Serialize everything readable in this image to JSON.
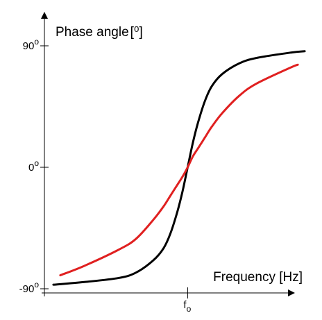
{
  "chart_data": {
    "type": "line",
    "ylabel": "Phase angle",
    "ylabel_unit": "[⁰]",
    "xlabel": "Frequency [Hz]",
    "y_ticks": [
      {
        "value": 90,
        "label": "90",
        "sup": "o"
      },
      {
        "value": 0,
        "label": "0",
        "sup": "o"
      },
      {
        "value": -90,
        "label": "-90",
        "sup": "o"
      }
    ],
    "x_ticks": [
      {
        "value": 0,
        "label": "f",
        "sub": "o"
      }
    ],
    "xlim": [
      -4,
      3.5
    ],
    "ylim": [
      -90,
      90
    ],
    "grid": false,
    "legend": "none",
    "series": [
      {
        "color": "#000000",
        "x": [
          -3.9,
          -3,
          -2,
          -1.5,
          -1,
          -0.7,
          -0.5,
          -0.3,
          -0.15,
          0,
          0.15,
          0.3,
          0.5,
          0.7,
          1,
          1.5,
          2,
          3,
          3.4
        ],
        "y": [
          -87,
          -85,
          -82,
          -78,
          -69,
          -60,
          -49,
          -33,
          -18,
          0,
          18,
          33,
          49,
          60,
          69,
          77,
          81,
          85,
          86
        ]
      },
      {
        "color": "#e02020",
        "x": [
          -3.7,
          -3,
          -2,
          -1.5,
          -1,
          -0.7,
          -0.5,
          -0.3,
          -0.15,
          0,
          0.15,
          0.3,
          0.5,
          0.7,
          1,
          1.5,
          2,
          3,
          3.2
        ],
        "y": [
          -80,
          -73,
          -61,
          -53,
          -39,
          -29,
          -21,
          -13,
          -7,
          0,
          8,
          14,
          22,
          30,
          40,
          53,
          62,
          74,
          76
        ]
      }
    ]
  }
}
